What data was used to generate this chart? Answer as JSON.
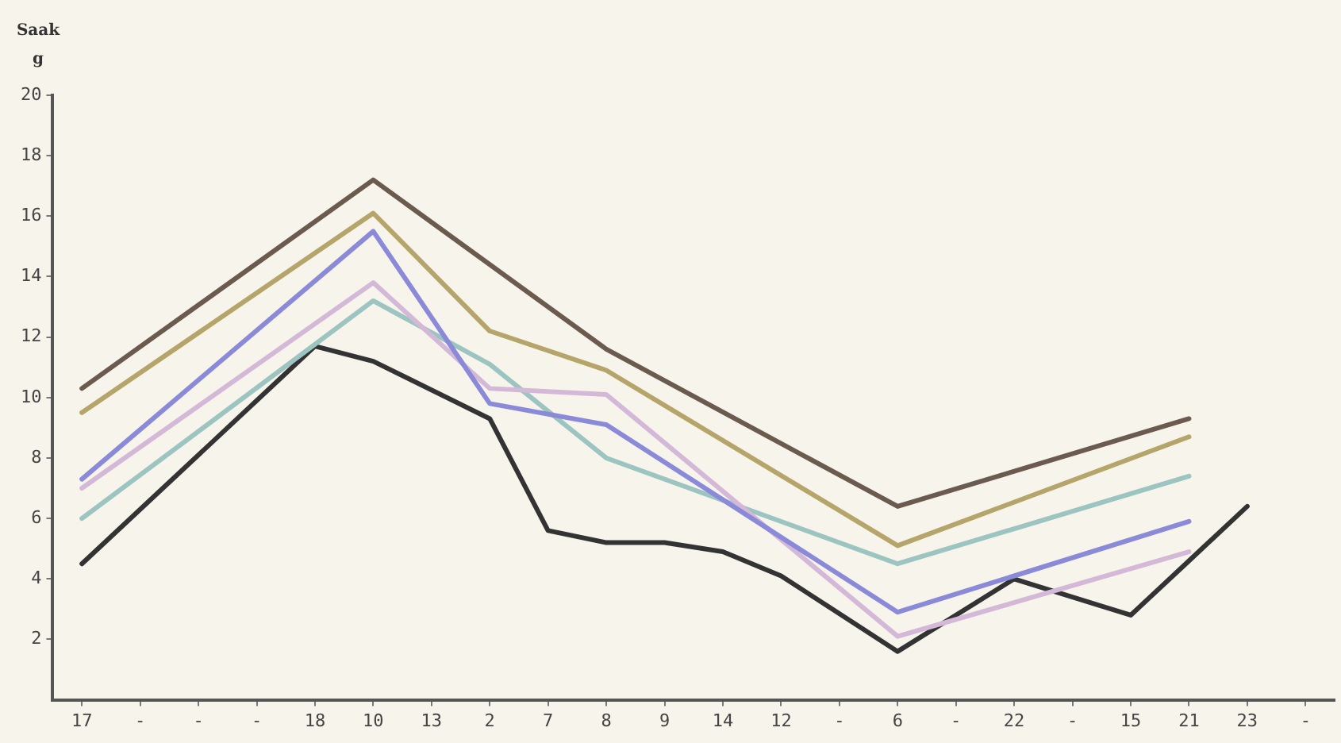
{
  "chart_data": {
    "type": "line",
    "ylabel": "Saak g",
    "categories": [
      "17",
      "-",
      "-",
      "-",
      "18",
      "10",
      "13",
      "2",
      "7",
      "8",
      "9",
      "14",
      "12",
      "-",
      "6",
      "-",
      "22",
      "-",
      "15",
      "21",
      "23",
      "-"
    ],
    "ylim": [
      0,
      20
    ],
    "yticks": [
      2,
      4,
      6,
      8,
      10,
      12,
      14,
      16,
      18,
      20
    ],
    "grid": false,
    "legend": false,
    "marker": "none",
    "line_style": "solid",
    "series": [
      {
        "color": "#6b5a4e",
        "values": [
          10.3,
          null,
          null,
          null,
          null,
          17.2,
          null,
          null,
          null,
          11.6,
          null,
          null,
          null,
          null,
          6.4,
          null,
          null,
          null,
          null,
          9.3,
          null,
          null
        ]
      },
      {
        "color": "#b5a56a",
        "values": [
          9.5,
          null,
          null,
          null,
          null,
          16.1,
          null,
          12.2,
          null,
          10.9,
          null,
          null,
          null,
          null,
          5.1,
          null,
          null,
          null,
          null,
          8.7,
          null,
          null
        ]
      },
      {
        "color": "#8a8ad8",
        "values": [
          7.3,
          null,
          null,
          null,
          null,
          15.5,
          null,
          9.8,
          null,
          9.1,
          null,
          null,
          null,
          null,
          2.9,
          null,
          null,
          null,
          null,
          5.9,
          null,
          null
        ]
      },
      {
        "color": "#d4b8d8",
        "values": [
          7.0,
          null,
          null,
          null,
          null,
          13.8,
          null,
          10.3,
          null,
          10.1,
          null,
          null,
          null,
          null,
          2.1,
          null,
          null,
          null,
          null,
          4.9,
          null,
          null
        ]
      },
      {
        "color": "#9cc4c0",
        "values": [
          6.0,
          null,
          null,
          null,
          null,
          13.2,
          null,
          11.1,
          null,
          8.0,
          null,
          null,
          null,
          null,
          4.5,
          null,
          null,
          null,
          null,
          7.4,
          null,
          null
        ]
      },
      {
        "color": "#333333",
        "values": [
          4.5,
          null,
          null,
          null,
          11.7,
          11.2,
          null,
          9.3,
          5.6,
          5.2,
          5.2,
          4.9,
          4.1,
          null,
          1.6,
          null,
          4.0,
          null,
          2.8,
          4.6,
          6.4,
          null
        ]
      }
    ]
  }
}
